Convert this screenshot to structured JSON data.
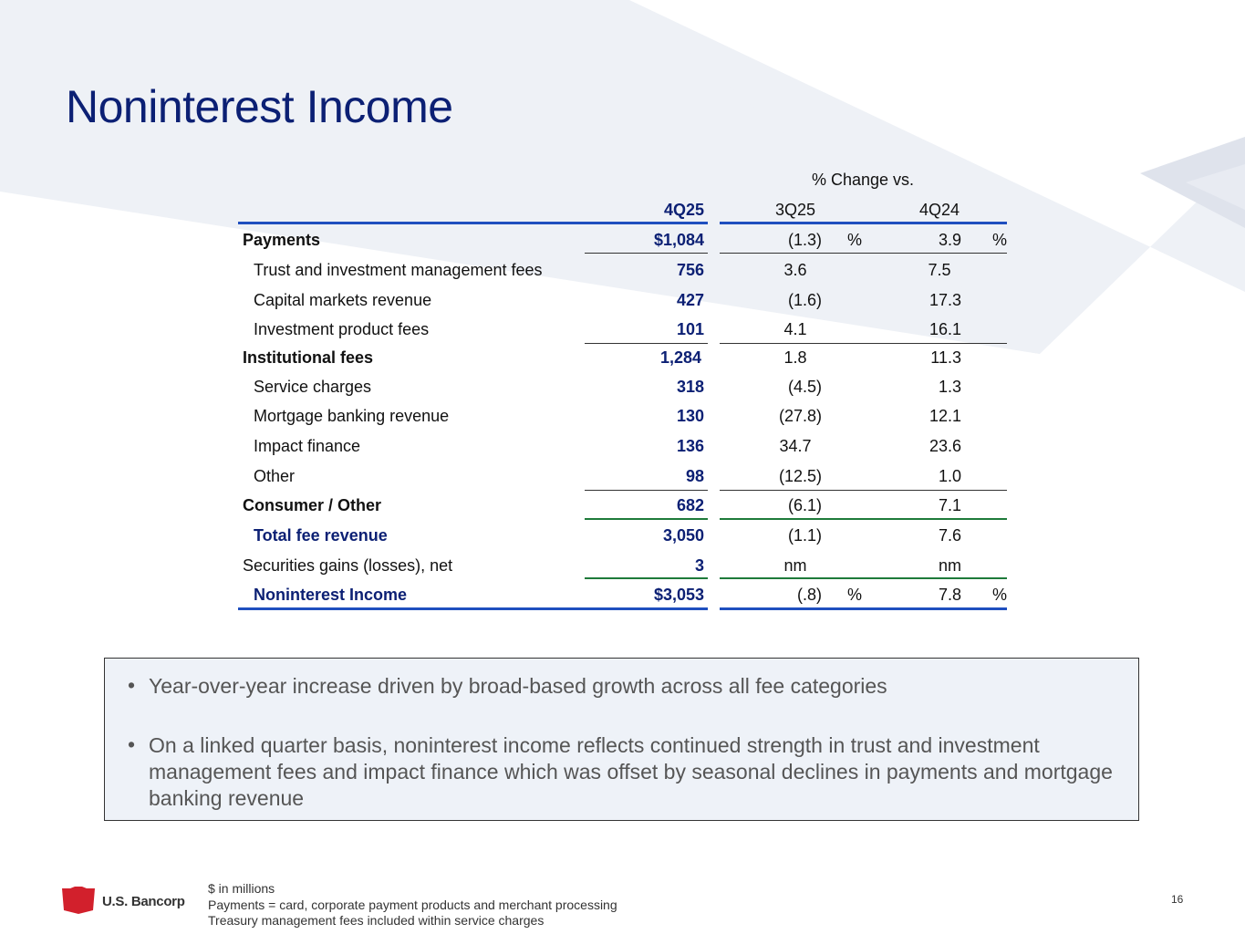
{
  "slide": {
    "title": "Noninterest Income",
    "page_number": "16"
  },
  "table": {
    "group_header": "% Change vs.",
    "col_current": "4Q25",
    "col_3q": "3Q25",
    "col_4q": "4Q24",
    "pct_sign": "%",
    "rows": [
      {
        "label": "Payments",
        "value": "$1,084",
        "chg_3q": "(1.3)",
        "chg_4q": "3.9"
      },
      {
        "label": "Trust and investment management fees",
        "value": "756",
        "chg_3q": "3.6",
        "chg_4q": "7.5"
      },
      {
        "label": "Capital markets revenue",
        "value": "427",
        "chg_3q": "(1.6)",
        "chg_4q": "17.3"
      },
      {
        "label": "Investment product fees",
        "value": "101",
        "chg_3q": "4.1",
        "chg_4q": "16.1"
      },
      {
        "label": "Institutional fees",
        "value": "1,284",
        "chg_3q": "1.8",
        "chg_4q": "11.3"
      },
      {
        "label": "Service charges",
        "value": "318",
        "chg_3q": "(4.5)",
        "chg_4q": "1.3"
      },
      {
        "label": "Mortgage banking revenue",
        "value": "130",
        "chg_3q": "(27.8)",
        "chg_4q": "12.1"
      },
      {
        "label": "Impact finance",
        "value": "136",
        "chg_3q": "34.7",
        "chg_4q": "23.6"
      },
      {
        "label": "Other",
        "value": "98",
        "chg_3q": "(12.5)",
        "chg_4q": "1.0"
      },
      {
        "label": "Consumer / Other",
        "value": "682",
        "chg_3q": "(6.1)",
        "chg_4q": "7.1"
      },
      {
        "label": "Total fee revenue",
        "value": "3,050",
        "chg_3q": "(1.1)",
        "chg_4q": "7.6"
      },
      {
        "label": "Securities gains (losses), net",
        "value": "3",
        "chg_3q": "nm",
        "chg_4q": "nm"
      },
      {
        "label": "Noninterest Income",
        "value": "$3,053",
        "chg_3q": "(.8)",
        "chg_4q": "7.8"
      }
    ]
  },
  "commentary": {
    "bullets": [
      "Year-over-year increase driven by broad-based growth across all fee categories",
      "On a linked quarter basis, noninterest income reflects continued strength in trust and investment management fees and impact finance which was offset by seasonal declines in payments and mortgage banking revenue"
    ]
  },
  "footer": {
    "logo_text": "U.S. Bancorp",
    "notes": [
      "$ in millions",
      "Payments = card, corporate payment products and merchant processing",
      "Treasury management fees included within service charges"
    ]
  },
  "colors": {
    "title_navy": "#0c2074",
    "rule_blue": "#1f4fbf",
    "rule_green": "#1e7a3a",
    "logo_red": "#d2202c",
    "box_fill": "#eef2f8"
  }
}
